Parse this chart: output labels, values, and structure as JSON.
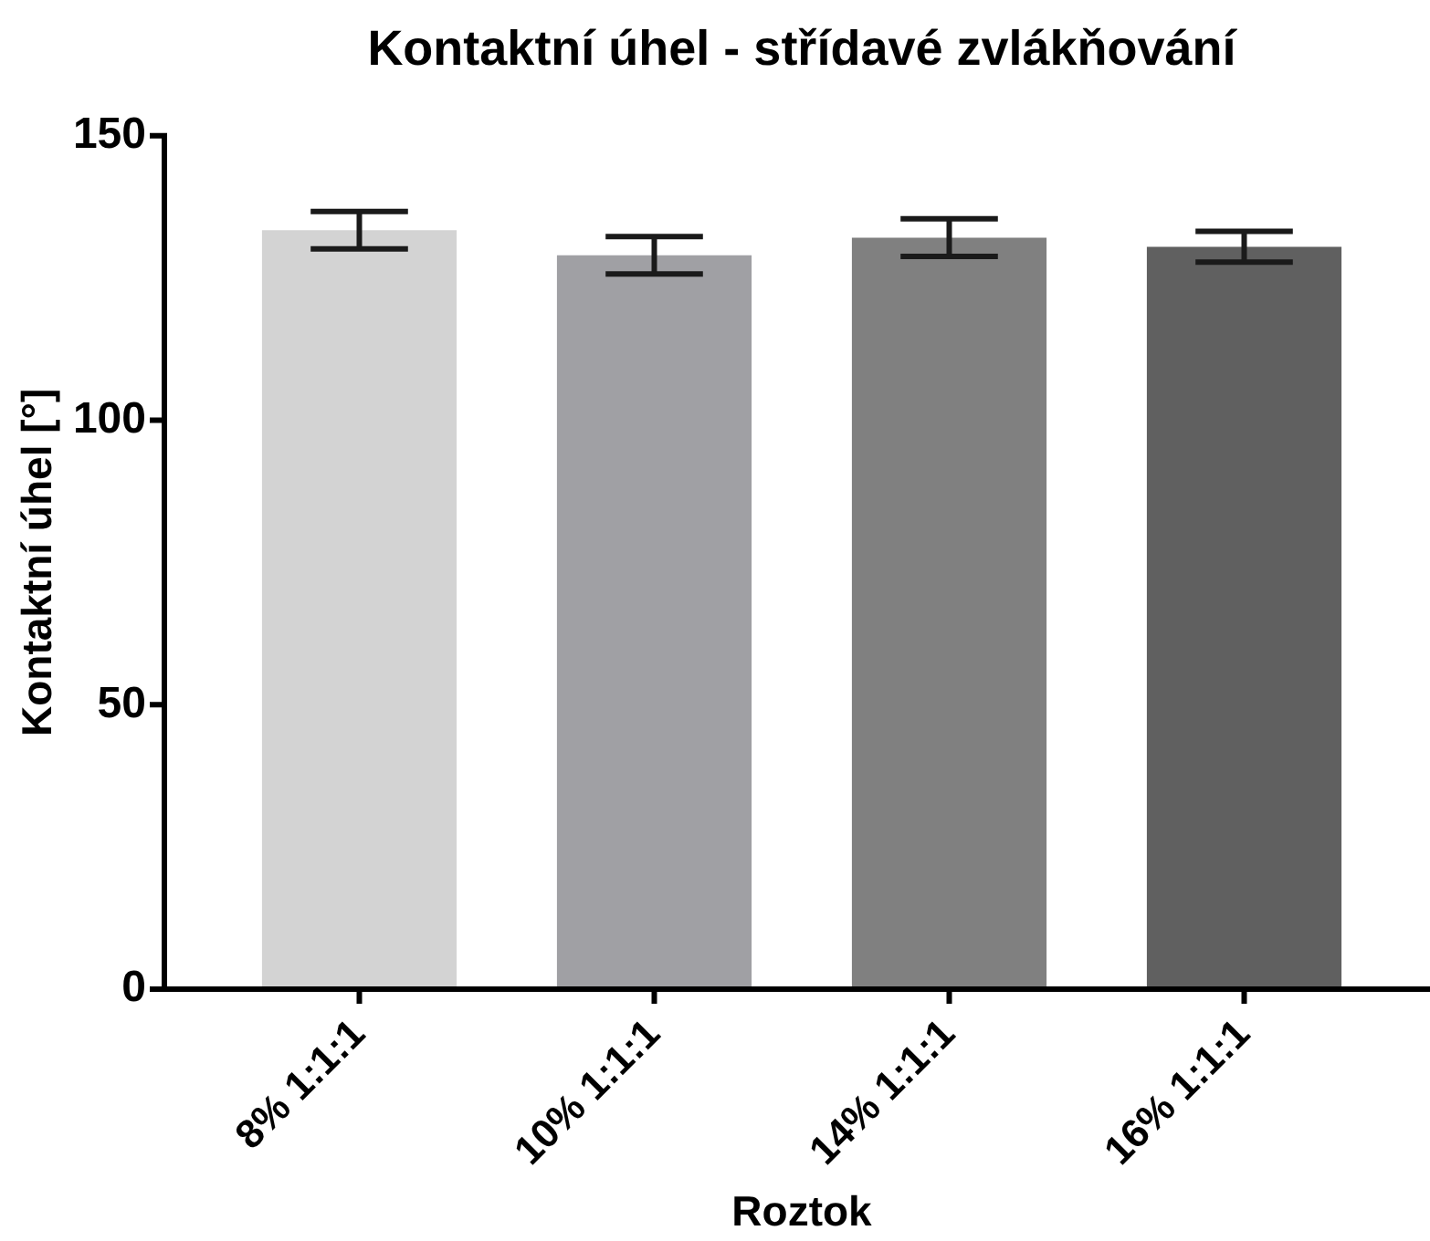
{
  "chart_data": {
    "type": "bar",
    "title": "Kontaktní úhel - střídavé zvlákňování",
    "xlabel": "Roztok",
    "ylabel": "Kontaktní úhel [°]",
    "categories": [
      "8% 1:1:1",
      "10% 1:1:1",
      "14% 1:1:1",
      "16% 1:1:1"
    ],
    "values": [
      133.4,
      129,
      132.1,
      130.5
    ],
    "errors": [
      3.3,
      3.3,
      3.3,
      2.7
    ],
    "colors": [
      "#d3d3d3",
      "#a0a0a4",
      "#808080",
      "#606060"
    ],
    "ylim": [
      0,
      150
    ],
    "yticks": [
      0,
      50,
      100,
      150
    ]
  }
}
